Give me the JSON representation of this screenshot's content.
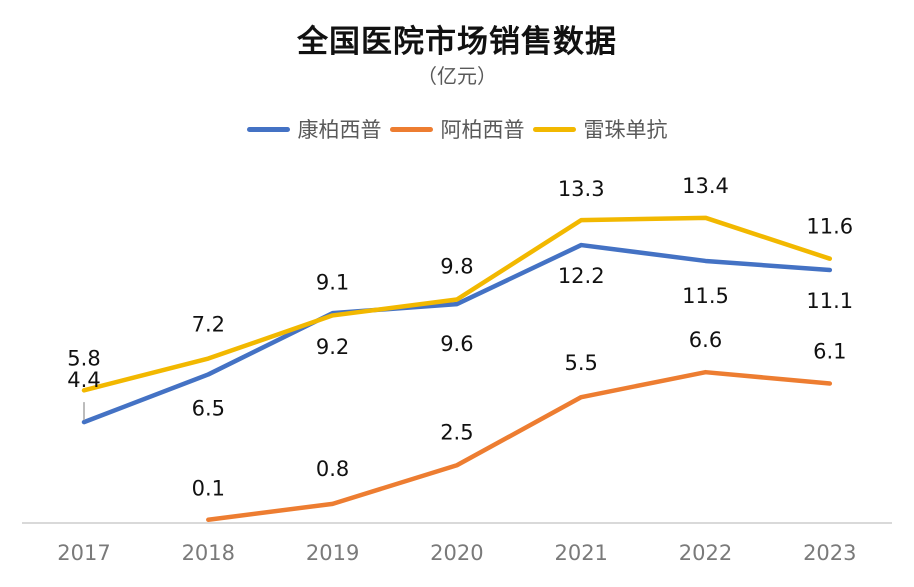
{
  "chart_data": {
    "type": "line",
    "title": "全国医院市场销售数据",
    "subtitle": "（亿元）",
    "xlabel": "",
    "ylabel": "",
    "categories": [
      "2017",
      "2018",
      "2019",
      "2020",
      "2021",
      "2022",
      "2023"
    ],
    "series": [
      {
        "name": "康柏西普",
        "color": "#4472C4",
        "values": [
          4.4,
          6.5,
          9.2,
          9.6,
          12.2,
          11.5,
          11.1
        ],
        "label_position": "below"
      },
      {
        "name": "阿柏西普",
        "color": "#ED7D31",
        "values": [
          null,
          0.1,
          0.8,
          2.5,
          5.5,
          6.6,
          6.1
        ],
        "label_position": "above"
      },
      {
        "name": "雷珠单抗",
        "color": "#F2B800",
        "values": [
          5.8,
          7.2,
          9.1,
          9.8,
          13.3,
          13.4,
          11.6
        ],
        "label_position": "above"
      }
    ],
    "ylim": [
      0,
      13.4
    ],
    "grid": false,
    "y_axis_visible": false,
    "legend": "top-center",
    "axis_color": "#D9D9D9",
    "tick_label_color": "#7A7A7A"
  }
}
